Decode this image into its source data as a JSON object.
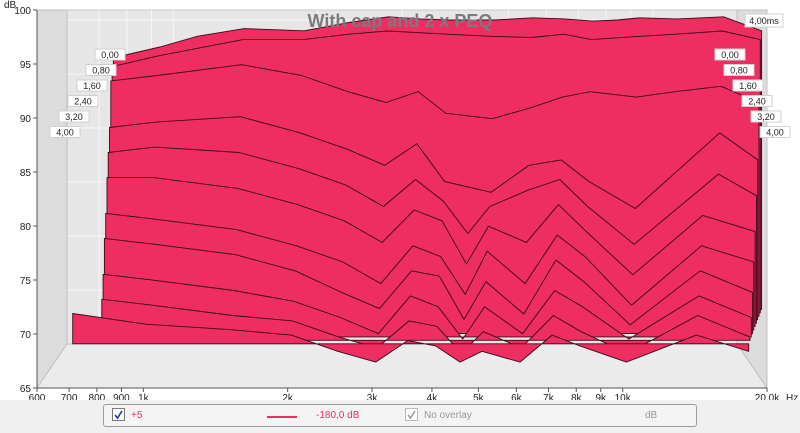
{
  "chart_data": {
    "type": "area",
    "title": "With cap and 2 x PEQ",
    "y_unit_label": "dB",
    "x_unit_label": "Hz",
    "x_scale": "log",
    "xlim": [
      600,
      20000
    ],
    "ylim": [
      65,
      100
    ],
    "y_ticks": [
      "65",
      "70",
      "75",
      "80",
      "85",
      "90",
      "95",
      "100"
    ],
    "x_ticks": [
      {
        "value": 600,
        "label": "600"
      },
      {
        "value": 700,
        "label": "700"
      },
      {
        "value": 800,
        "label": "800"
      },
      {
        "value": 900,
        "label": "900"
      },
      {
        "value": 1000,
        "label": "1k"
      },
      {
        "value": 2000,
        "label": "2k"
      },
      {
        "value": 3000,
        "label": "3k"
      },
      {
        "value": 4000,
        "label": "4k"
      },
      {
        "value": 5000,
        "label": "5k"
      },
      {
        "value": 6000,
        "label": "6k"
      },
      {
        "value": 7000,
        "label": "7k"
      },
      {
        "value": 8000,
        "label": "8k"
      },
      {
        "value": 9000,
        "label": "9k"
      },
      {
        "value": 10000,
        "label": "10k"
      },
      {
        "value": 20000,
        "label": "20,0k"
      }
    ],
    "time_unit_label": "4,00ms",
    "time_labels": [
      "0,00",
      "0,80",
      "1,60",
      "2,40",
      "3,20",
      "4,00"
    ],
    "grid": true,
    "fill_color": "#ee2d61",
    "slices": [
      {
        "time": "0,00",
        "x": [
          800,
          1000,
          1200,
          1500,
          2000,
          2500,
          3000,
          3500,
          4000,
          5000,
          6000,
          7000,
          8000,
          9000,
          10000,
          12000,
          15000,
          18000
        ],
        "y": [
          91.5,
          92.5,
          93.5,
          94.2,
          94.0,
          94.8,
          95.3,
          95.1,
          95.0,
          95.0,
          95.2,
          95.1,
          94.9,
          95.0,
          95.2,
          95.1,
          95.3,
          94.0
        ]
      },
      {
        "time": "0,40",
        "x": [
          800,
          1000,
          1500,
          2000,
          2500,
          3000,
          4000,
          5000,
          6000,
          7000,
          8000,
          10000,
          12000,
          15000,
          18000
        ],
        "y": [
          91.0,
          92.0,
          93.5,
          93.5,
          94.0,
          94.3,
          94.0,
          93.8,
          93.7,
          94.0,
          93.5,
          93.8,
          94.0,
          94.3,
          93.5
        ]
      },
      {
        "time": "0,80",
        "x": [
          800,
          1000,
          1500,
          2000,
          2500,
          3000,
          3500,
          4000,
          5000,
          6000,
          7000,
          8000,
          10000,
          12000,
          15000,
          18000
        ],
        "y": [
          90.0,
          90.5,
          91.5,
          90.5,
          89.0,
          88.0,
          89.0,
          87.0,
          86.5,
          87.5,
          88.5,
          89.0,
          88.5,
          89.0,
          89.5,
          88.0
        ]
      },
      {
        "time": "1,20",
        "x": [
          800,
          1000,
          1500,
          2000,
          2500,
          3000,
          3500,
          4000,
          5000,
          6000,
          7000,
          8000,
          10000,
          15000,
          18000
        ],
        "y": [
          86.0,
          86.5,
          87.0,
          85.5,
          84.0,
          82.5,
          84.5,
          81.0,
          80.0,
          82.5,
          83.0,
          81.0,
          78.5,
          85.5,
          83.0
        ]
      },
      {
        "time": "1,60",
        "x": [
          800,
          1000,
          1500,
          2000,
          2500,
          3000,
          3500,
          4000,
          4500,
          5000,
          6000,
          7000,
          8000,
          10000,
          15000,
          18000
        ],
        "y": [
          84.0,
          84.5,
          84.0,
          82.5,
          81.0,
          79.0,
          81.5,
          79.5,
          76.5,
          79.0,
          80.5,
          81.5,
          79.0,
          75.5,
          82.0,
          80.0
        ]
      },
      {
        "time": "2,00",
        "x": [
          800,
          1000,
          1500,
          2000,
          2500,
          3000,
          3500,
          4000,
          4500,
          5000,
          6000,
          7000,
          8000,
          10000,
          14000,
          18000
        ],
        "y": [
          82.0,
          82.0,
          81.0,
          79.5,
          78.0,
          76.0,
          79.0,
          78.0,
          74.0,
          77.5,
          76.0,
          79.5,
          77.0,
          73.0,
          78.5,
          77.0
        ]
      },
      {
        "time": "2,40",
        "x": [
          800,
          1000,
          1500,
          2000,
          2500,
          3000,
          3500,
          4000,
          4500,
          5000,
          6000,
          7000,
          8000,
          10000,
          14000,
          18000
        ],
        "y": [
          79.0,
          78.5,
          77.5,
          76.0,
          74.5,
          72.5,
          76.0,
          75.0,
          71.5,
          75.5,
          72.5,
          77.0,
          75.0,
          70.5,
          76.0,
          74.5
        ]
      },
      {
        "time": "2,80",
        "x": [
          800,
          1000,
          1500,
          2000,
          2500,
          3000,
          3500,
          4000,
          4500,
          5000,
          6000,
          7000,
          8000,
          10000,
          14000,
          18000
        ],
        "y": [
          77.0,
          76.5,
          75.5,
          74.0,
          72.0,
          70.5,
          74.0,
          73.5,
          69.5,
          73.0,
          70.0,
          75.0,
          73.0,
          69.0,
          74.0,
          72.0
        ]
      },
      {
        "time": "3,20",
        "x": [
          800,
          1000,
          1500,
          2000,
          2500,
          3000,
          3500,
          4000,
          4500,
          5000,
          6000,
          7000,
          8000,
          10000,
          14000,
          18000
        ],
        "y": [
          74.0,
          73.5,
          72.5,
          71.5,
          70.0,
          68.5,
          72.0,
          71.0,
          68.0,
          71.0,
          68.5,
          72.5,
          71.0,
          68.0,
          72.0,
          70.0
        ]
      },
      {
        "time": "3,60",
        "x": [
          800,
          1000,
          1500,
          2000,
          2500,
          3000,
          3500,
          4000,
          4500,
          5000,
          6000,
          7000,
          8000,
          10000,
          14000,
          18000
        ],
        "y": [
          72.0,
          71.5,
          70.5,
          70.0,
          68.5,
          67.5,
          70.0,
          69.5,
          67.0,
          69.0,
          67.5,
          70.5,
          69.0,
          67.0,
          70.5,
          68.5
        ]
      },
      {
        "time": "4,00",
        "x": [
          700,
          1000,
          1500,
          2000,
          2500,
          3000,
          3500,
          4000,
          4500,
          5000,
          6000,
          7000,
          8000,
          10000,
          14000,
          18000
        ],
        "y": [
          71.0,
          70.0,
          69.5,
          69.0,
          67.5,
          66.5,
          68.5,
          68.0,
          66.5,
          67.5,
          66.5,
          69.0,
          68.0,
          66.5,
          69.0,
          67.5
        ]
      }
    ]
  },
  "legend": {
    "trace_checkbox_label": "+5",
    "trace_value": "-180,0 dB",
    "overlay_label": "No overlay",
    "overlay_unit": "dB",
    "trace_color": "#ee2d61"
  }
}
